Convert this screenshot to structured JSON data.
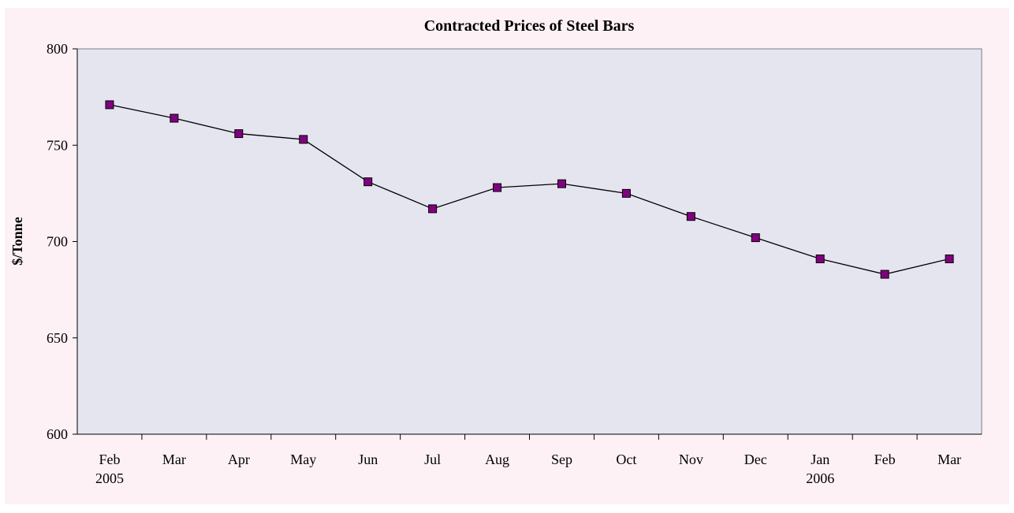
{
  "chart_data": {
    "type": "line",
    "title": "Contracted Prices of Steel Bars",
    "y_label": "$/Tonne",
    "categories": [
      "Feb\n2005",
      "Mar",
      "Apr",
      "May",
      "Jun",
      "Jul",
      "Aug",
      "Sep",
      "Oct",
      "Nov",
      "Dec",
      "Jan\n2006",
      "Feb",
      "Mar"
    ],
    "series": [
      {
        "name": "Contracted Prices",
        "color": "#800080",
        "line_color": "#000000",
        "values": [
          771,
          764,
          756,
          753,
          731,
          717,
          728,
          730,
          725,
          713,
          702,
          691,
          683,
          691
        ]
      }
    ],
    "ylim": [
      600,
      800
    ],
    "yticks": [
      600,
      650,
      700,
      750,
      800
    ],
    "grid": false
  }
}
